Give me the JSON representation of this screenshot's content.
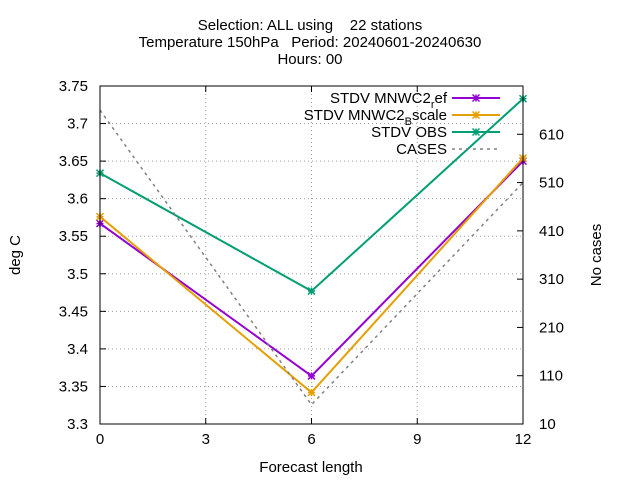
{
  "chart_data": {
    "type": "line",
    "title_lines": [
      "Selection: ALL using    22 stations",
      "Temperature 150hPa   Period: 20240601-20240630",
      "Hours: 00"
    ],
    "xlabel": "Forecast length",
    "ylabel": "deg C",
    "y2label": "No cases",
    "xlim": [
      0,
      12
    ],
    "ylim": [
      3.3,
      3.75
    ],
    "y2lim": [
      10,
      710
    ],
    "xticks": [
      "0",
      "3",
      "6",
      "9",
      "12"
    ],
    "yticks": [
      "3.3",
      "3.35",
      "3.4",
      "3.45",
      "3.5",
      "3.55",
      "3.6",
      "3.65",
      "3.7",
      "3.75"
    ],
    "y2ticks": [
      "10",
      "110",
      "210",
      "310",
      "410",
      "510",
      "610"
    ],
    "grid": true,
    "legend_position": "top-right",
    "x": [
      0,
      6,
      12
    ],
    "series": [
      {
        "name": "STDV MNWC2_ref",
        "label_main": "STDV MNWC2",
        "label_sub": "r",
        "label_tail": "ef",
        "axis": "y",
        "color": "#9400d3",
        "values": [
          3.567,
          3.364,
          3.65
        ]
      },
      {
        "name": "STDV MNWC2_Bscale",
        "label_main": "STDV MNWC2",
        "label_sub": "B",
        "label_tail": "scale",
        "axis": "y",
        "color": "#e69f00",
        "values": [
          3.576,
          3.342,
          3.654
        ]
      },
      {
        "name": "STDV OBS",
        "label_main": "STDV OBS",
        "label_sub": "",
        "label_tail": "",
        "axis": "y",
        "color": "#009e73",
        "values": [
          3.634,
          3.477,
          3.733
        ]
      },
      {
        "name": "CASES",
        "label_main": "CASES",
        "label_sub": "",
        "label_tail": "",
        "axis": "y2",
        "color": "#808080",
        "dashed": true,
        "values": [
          660,
          50,
          510
        ]
      }
    ]
  }
}
